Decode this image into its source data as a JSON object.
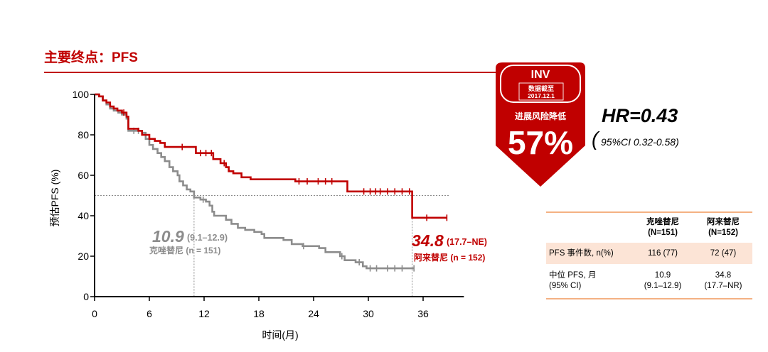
{
  "title": "主要终点：PFS",
  "theme": {
    "accent": "#c00000",
    "table_rule": "#f4b183",
    "table_highlight": "#fce4d6"
  },
  "badge": {
    "label": "INV",
    "cutoff_label": "数据截至",
    "cutoff_date": "2017.12.1",
    "risk_text": "进展风险降低",
    "risk_value": "57%"
  },
  "hr": {
    "value": "HR=0.43",
    "ci_open": "(",
    "ci": "95%CI 0.32-0.58)"
  },
  "chart_data": {
    "type": "line",
    "step": true,
    "xlabel": "时间(月)",
    "ylabel": "预估PFS (%)",
    "xlim": [
      0,
      40
    ],
    "ylim": [
      0,
      100
    ],
    "xticks": [
      0,
      6,
      12,
      18,
      24,
      30,
      36
    ],
    "yticks": [
      0,
      20,
      40,
      60,
      80,
      100
    ],
    "grid": false,
    "reference_y": 50,
    "series": [
      {
        "name": "克唑替尼",
        "n_label": "(n = 151)",
        "color": "#8c8c8c",
        "median": 10.9,
        "median_ci": "(9.1–12.9)",
        "steps": [
          [
            0,
            100
          ],
          [
            0.5,
            99
          ],
          [
            0.9,
            97
          ],
          [
            1.3,
            95
          ],
          [
            1.7,
            93
          ],
          [
            2.1,
            92
          ],
          [
            2.6,
            91
          ],
          [
            3.0,
            90
          ],
          [
            3.5,
            88
          ],
          [
            3.7,
            82
          ],
          [
            5.2,
            81
          ],
          [
            5.6,
            78
          ],
          [
            6.0,
            75
          ],
          [
            6.4,
            73
          ],
          [
            6.9,
            71
          ],
          [
            7.3,
            69
          ],
          [
            7.7,
            67
          ],
          [
            8.2,
            64
          ],
          [
            8.6,
            62
          ],
          [
            9.1,
            60
          ],
          [
            9.3,
            57
          ],
          [
            9.7,
            55
          ],
          [
            10.1,
            53
          ],
          [
            10.5,
            52
          ],
          [
            10.9,
            49
          ],
          [
            11.6,
            48
          ],
          [
            12.2,
            47
          ],
          [
            12.6,
            45
          ],
          [
            12.9,
            42
          ],
          [
            13.1,
            40
          ],
          [
            14.4,
            38
          ],
          [
            15.0,
            36
          ],
          [
            15.7,
            34
          ],
          [
            16.5,
            33
          ],
          [
            17.5,
            32
          ],
          [
            18.3,
            31
          ],
          [
            18.6,
            29
          ],
          [
            20.7,
            28
          ],
          [
            21.6,
            26
          ],
          [
            22.8,
            25
          ],
          [
            24.6,
            24
          ],
          [
            25.3,
            22
          ],
          [
            26.9,
            20
          ],
          [
            27.4,
            18
          ],
          [
            28.6,
            17
          ],
          [
            29.4,
            15
          ],
          [
            29.8,
            14
          ],
          [
            35.0,
            14
          ]
        ],
        "censored": [
          4.3,
          4.8,
          11.9,
          22.9,
          27.1,
          29.0,
          30.2,
          30.9,
          32.1,
          32.9,
          33.7,
          35.0
        ]
      },
      {
        "name": "阿来替尼",
        "n_label": "(n = 152)",
        "color": "#c00000",
        "median": 34.8,
        "median_ci": "(17.7–NE)",
        "steps": [
          [
            0,
            100
          ],
          [
            0.5,
            99
          ],
          [
            0.9,
            97
          ],
          [
            1.3,
            96
          ],
          [
            1.7,
            94
          ],
          [
            2.1,
            93
          ],
          [
            2.5,
            92
          ],
          [
            3.0,
            91
          ],
          [
            3.5,
            89
          ],
          [
            3.7,
            83
          ],
          [
            4.8,
            82
          ],
          [
            5.2,
            80
          ],
          [
            6.0,
            78
          ],
          [
            6.6,
            77
          ],
          [
            7.2,
            76
          ],
          [
            7.7,
            74
          ],
          [
            11.1,
            71
          ],
          [
            13.0,
            68
          ],
          [
            13.8,
            66
          ],
          [
            14.4,
            64
          ],
          [
            14.7,
            62
          ],
          [
            15.2,
            61
          ],
          [
            16.1,
            59
          ],
          [
            17.1,
            58
          ],
          [
            22.0,
            57
          ],
          [
            27.7,
            52
          ],
          [
            34.8,
            39
          ],
          [
            38.6,
            39
          ]
        ],
        "censored": [
          3.2,
          9.6,
          11.6,
          12.2,
          12.8,
          14.2,
          22.4,
          23.3,
          24.5,
          25.3,
          26.0,
          29.5,
          30.2,
          30.8,
          31.3,
          32.1,
          32.9,
          33.7,
          34.5,
          36.4,
          38.6
        ]
      }
    ]
  },
  "table": {
    "columns": [
      {
        "name": "克唑替尼",
        "n": "(N=151)"
      },
      {
        "name": "阿来替尼",
        "n": "(N=152)"
      }
    ],
    "rows": [
      {
        "label": "PFS 事件数, n(%)",
        "values": [
          "116 (77)",
          "72 (47)"
        ]
      },
      {
        "label": "中位 PFS, 月",
        "label_sub": "(95% CI)",
        "values": [
          "10.9",
          "34.8"
        ],
        "values_sub": [
          "(9.1–12.9)",
          "(17.7–NR)"
        ]
      }
    ]
  }
}
